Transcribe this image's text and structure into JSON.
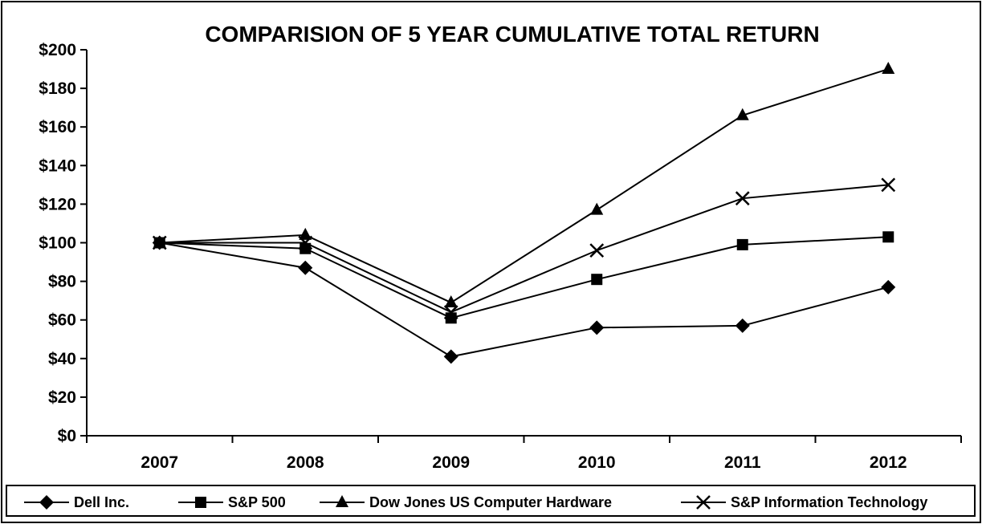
{
  "chart_data": {
    "type": "line",
    "title": "COMPARISION OF 5 YEAR CUMULATIVE TOTAL RETURN",
    "xlabel": "",
    "ylabel": "",
    "categories": [
      "2007",
      "2008",
      "2009",
      "2010",
      "2011",
      "2012"
    ],
    "y_ticks": [
      "$0",
      "$20",
      "$40",
      "$60",
      "$80",
      "$100",
      "$120",
      "$140",
      "$160",
      "$180",
      "$200"
    ],
    "ylim": [
      0,
      200
    ],
    "grid": false,
    "legend_position": "bottom",
    "series": [
      {
        "name": "Dell Inc.",
        "marker": "diamond",
        "color": "#000000",
        "values": [
          100,
          87,
          41,
          56,
          57,
          77
        ]
      },
      {
        "name": "S&P 500",
        "marker": "square",
        "color": "#000000",
        "values": [
          100,
          97,
          61,
          81,
          99,
          103
        ]
      },
      {
        "name": "Dow Jones US Computer Hardware",
        "marker": "triangle",
        "color": "#000000",
        "values": [
          100,
          104,
          69,
          117,
          166,
          190
        ]
      },
      {
        "name": "S&P Information Technology",
        "marker": "x",
        "color": "#000000",
        "values": [
          100,
          100,
          64,
          96,
          123,
          130
        ]
      }
    ]
  }
}
